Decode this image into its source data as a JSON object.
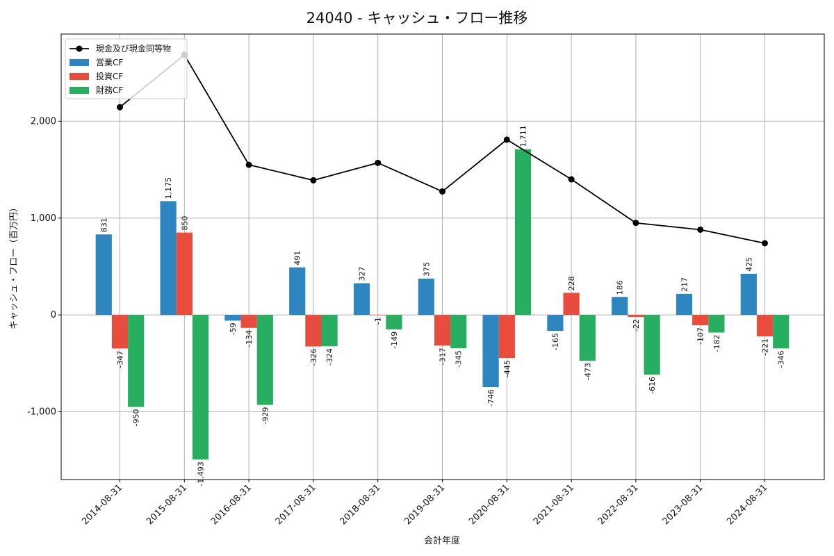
{
  "chart_data": {
    "type": "bar",
    "title": "24040 - キャッシュ・フロー推移",
    "xlabel": "会計年度",
    "ylabel": "キャッシュ・フロー（百万円）",
    "categories": [
      "2014-08-31",
      "2015-08-31",
      "2016-08-31",
      "2017-08-31",
      "2018-08-31",
      "2019-08-31",
      "2020-08-31",
      "2021-08-31",
      "2022-08-31",
      "2023-08-31",
      "2024-08-31"
    ],
    "series": [
      {
        "name": "営業CF",
        "kind": "bar",
        "color": "#2e86c1",
        "values": [
          831,
          1175,
          -59,
          491,
          327,
          375,
          -746,
          -165,
          186,
          217,
          425
        ],
        "labels": [
          "831",
          "1,175",
          "-59",
          "491",
          "327",
          "375",
          "-746",
          "-165",
          "186",
          "217",
          "425"
        ]
      },
      {
        "name": "投資CF",
        "kind": "bar",
        "color": "#e74c3c",
        "values": [
          -347,
          850,
          -134,
          -326,
          -1,
          -317,
          -445,
          228,
          -22,
          -107,
          -221
        ],
        "labels": [
          "-347",
          "850",
          "-134",
          "-326",
          "-1",
          "-317",
          "-445",
          "228",
          "-22",
          "-107",
          "-221"
        ]
      },
      {
        "name": "財務CF",
        "kind": "bar",
        "color": "#27ae60",
        "values": [
          -950,
          -1493,
          -929,
          -324,
          -149,
          -345,
          1711,
          -473,
          -616,
          -182,
          -346
        ],
        "labels": [
          "-950",
          "-1,493",
          "-929",
          "-324",
          "-149",
          "-345",
          "1,711",
          "-473",
          "-616",
          "-182",
          "-346"
        ]
      },
      {
        "name": "現金及び現金同等物",
        "kind": "line",
        "color": "#000000",
        "values": [
          2145,
          2685,
          1550,
          1390,
          1570,
          1275,
          1810,
          1400,
          950,
          880,
          740
        ]
      }
    ],
    "yticks": [
      -1000,
      0,
      1000,
      2000
    ],
    "ytick_labels": [
      "-1,000",
      "0",
      "1,000",
      "2,000"
    ],
    "ylim": [
      -1700,
      2900
    ],
    "grid": true,
    "legend_position": "top-left"
  }
}
